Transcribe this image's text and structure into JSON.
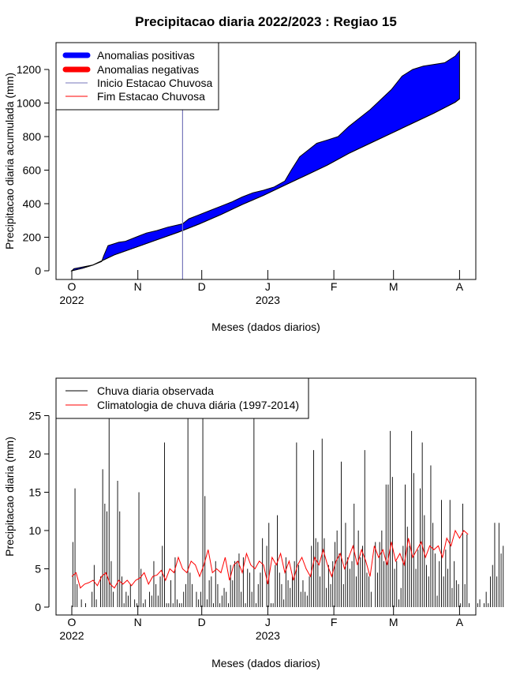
{
  "chart_data": [
    {
      "type": "area",
      "title": "Precipitacao diaria 2022/2023 : Regiao 15",
      "xlabel": "Meses (dados diarios)",
      "ylabel": "Precipitacao diaria acumulada (mm)",
      "ylim": [
        0,
        1300
      ],
      "yticks": [
        0,
        200,
        400,
        600,
        800,
        1000,
        1200
      ],
      "month_ticks": [
        {
          "label": "O",
          "year": "2022",
          "day": 0
        },
        {
          "label": "N",
          "year": "",
          "day": 31
        },
        {
          "label": "D",
          "year": "",
          "day": 61
        },
        {
          "label": "J",
          "year": "2023",
          "day": 92
        },
        {
          "label": "F",
          "year": "",
          "day": 123
        },
        {
          "label": "M",
          "year": "",
          "day": 151
        },
        {
          "label": "A",
          "year": "",
          "day": 182
        }
      ],
      "legend": {
        "placement": "top-left",
        "entries": [
          "Anomalias positivas",
          "Anomalias negativas",
          "Inicio Estacao Chuvosa",
          "Fim Estacao Chuvosa"
        ]
      },
      "rainy_season_start_day": 52,
      "series": [
        {
          "name": "observed_cumulative",
          "day": [
            0,
            1,
            5,
            10,
            14,
            15,
            17,
            22,
            25,
            30,
            32,
            35,
            40,
            45,
            52,
            55,
            60,
            65,
            70,
            75,
            80,
            85,
            90,
            95,
            100,
            103,
            107,
            111,
            115,
            120,
            125,
            130,
            135,
            140,
            145,
            150,
            155,
            160,
            165,
            170,
            175,
            180,
            182
          ],
          "values": [
            0,
            12,
            22,
            35,
            55,
            90,
            150,
            170,
            175,
            200,
            210,
            225,
            240,
            260,
            280,
            310,
            335,
            360,
            385,
            410,
            440,
            465,
            480,
            500,
            535,
            600,
            680,
            720,
            760,
            780,
            800,
            860,
            910,
            960,
            1020,
            1080,
            1160,
            1200,
            1220,
            1230,
            1240,
            1280,
            1310
          ]
        },
        {
          "name": "climatology_cumulative",
          "day": [
            0,
            5,
            10,
            15,
            20,
            30,
            40,
            50,
            60,
            70,
            80,
            90,
            100,
            110,
            120,
            130,
            140,
            150,
            160,
            170,
            180,
            182
          ],
          "values": [
            0,
            15,
            35,
            65,
            95,
            140,
            185,
            230,
            280,
            335,
            395,
            450,
            510,
            570,
            630,
            700,
            760,
            820,
            880,
            940,
            1005,
            1025
          ]
        }
      ],
      "colors": {
        "positive": "#0000ff",
        "negative": "#ff0000",
        "start_line": "#7777bb",
        "end_line": "#ff0000"
      }
    },
    {
      "type": "bar",
      "xlabel": "Meses (dados diarios)",
      "ylabel": "Precipitacao diaria (mm)",
      "ylim": [
        0,
        28
      ],
      "yticks": [
        0,
        5,
        10,
        15,
        20,
        25
      ],
      "month_ticks": [
        {
          "label": "O",
          "year": "2022",
          "day": 0
        },
        {
          "label": "N",
          "year": "",
          "day": 31
        },
        {
          "label": "D",
          "year": "",
          "day": 61
        },
        {
          "label": "J",
          "year": "2023",
          "day": 92
        },
        {
          "label": "F",
          "year": "",
          "day": 123
        },
        {
          "label": "M",
          "year": "",
          "day": 151
        },
        {
          "label": "A",
          "year": "",
          "day": 182
        }
      ],
      "legend": {
        "placement": "top-left",
        "entries": [
          "Chuva diaria observada",
          "Climatologia de chuva diária (1997-2014)"
        ]
      },
      "daily_rain_mm": [
        8.5,
        15.5,
        3,
        0,
        1,
        0,
        0.5,
        0,
        0,
        2,
        5.5,
        1,
        0,
        4,
        18,
        13.5,
        12.5,
        28,
        6,
        2,
        0,
        16.5,
        12.5,
        4,
        0.5,
        2,
        1.5,
        3,
        0,
        1,
        0.5,
        15,
        5,
        0.5,
        1,
        0,
        2,
        1.5,
        6,
        3,
        1.5,
        4,
        8,
        21.5,
        0.5,
        0.5,
        3.5,
        0.5,
        6.5,
        1,
        0.5,
        0.5,
        2,
        3,
        28,
        4.5,
        3,
        0,
        2,
        1,
        2,
        28,
        14.5,
        1,
        3.5,
        4,
        0.5,
        6,
        3,
        0.5,
        1.5,
        2.5,
        2,
        0.5,
        5.5,
        3.5,
        6,
        6,
        7,
        2,
        6.5,
        0.5,
        5,
        4.5,
        2,
        28,
        0.5,
        3,
        4.5,
        9,
        0,
        8,
        11,
        0.5,
        0.5,
        5.5,
        12,
        4.5,
        3,
        1,
        6.5,
        3.5,
        2.5,
        4,
        6,
        21.5,
        5.5,
        2,
        3.5,
        2,
        1.5,
        4,
        8,
        20.5,
        9,
        8.5,
        4,
        22,
        9,
        2.5,
        5.5,
        3,
        6,
        8.5,
        10,
        7,
        19,
        3,
        11,
        6.5,
        5,
        6,
        13.5,
        4,
        10,
        6.5,
        8,
        20.5,
        4.5,
        4,
        2,
        0,
        8.5,
        4.5,
        8.5,
        10,
        6,
        16,
        16,
        23,
        17,
        5,
        6,
        1,
        2.5,
        8,
        16,
        10.5,
        8,
        23,
        17.5,
        5,
        7.5,
        15.5,
        21.5,
        12,
        5.5,
        4,
        18.5,
        11,
        7,
        1.5,
        6,
        14,
        4,
        7.5,
        5,
        14,
        2.5,
        6,
        3.5,
        3,
        0.5,
        13.5,
        3,
        9.5,
        0.5,
        0,
        0,
        0,
        0.5,
        1,
        0,
        0.5,
        2,
        0.5,
        4,
        5.5,
        11,
        4,
        11,
        7,
        8
      ],
      "climatology_day": [
        0,
        2,
        4,
        6,
        8,
        10,
        12,
        14,
        16,
        18,
        20,
        22,
        24,
        26,
        28,
        30,
        32,
        34,
        36,
        38,
        40,
        42,
        44,
        46,
        48,
        50,
        52,
        54,
        56,
        58,
        60,
        62,
        64,
        66,
        68,
        70,
        72,
        74,
        76,
        78,
        80,
        82,
        84,
        86,
        88,
        90,
        92,
        94,
        96,
        98,
        100,
        102,
        104,
        106,
        108,
        110,
        112,
        114,
        116,
        118,
        120,
        122,
        124,
        126,
        128,
        130,
        132,
        134,
        136,
        138,
        140,
        142,
        144,
        146,
        148,
        150,
        152,
        154,
        156,
        158,
        160,
        162,
        164,
        166,
        168,
        170,
        172,
        174,
        176,
        178,
        180,
        182,
        184,
        186
      ],
      "climatology_mm": [
        4,
        4.5,
        2.5,
        3,
        3.2,
        3.5,
        2.8,
        4,
        4.5,
        3,
        2.5,
        3.5,
        3,
        3.5,
        2.8,
        3.5,
        3.8,
        4.5,
        3,
        4,
        4.2,
        4.8,
        3.5,
        5,
        4.5,
        6.5,
        5,
        4.5,
        6,
        5.5,
        4,
        5.5,
        7.5,
        4.5,
        5,
        4.5,
        6.5,
        3.5,
        5.5,
        6,
        4.5,
        7,
        5.5,
        5,
        6,
        5.5,
        3,
        6.5,
        5.5,
        7,
        4.5,
        6,
        3.5,
        5.5,
        6.5,
        5,
        4,
        6.5,
        5.5,
        7.5,
        5.5,
        4,
        6,
        7,
        5,
        6.5,
        8,
        5.5,
        7.5,
        6,
        4,
        8,
        6.5,
        7.5,
        5.5,
        8.5,
        6,
        7,
        5.5,
        9,
        6.5,
        7.5,
        8.5,
        6.5,
        8,
        7.5,
        8,
        6.5,
        9,
        8,
        10,
        9,
        10,
        9.5
      ],
      "colors": {
        "observed": "#000000",
        "climatology": "#ff0000"
      }
    }
  ]
}
